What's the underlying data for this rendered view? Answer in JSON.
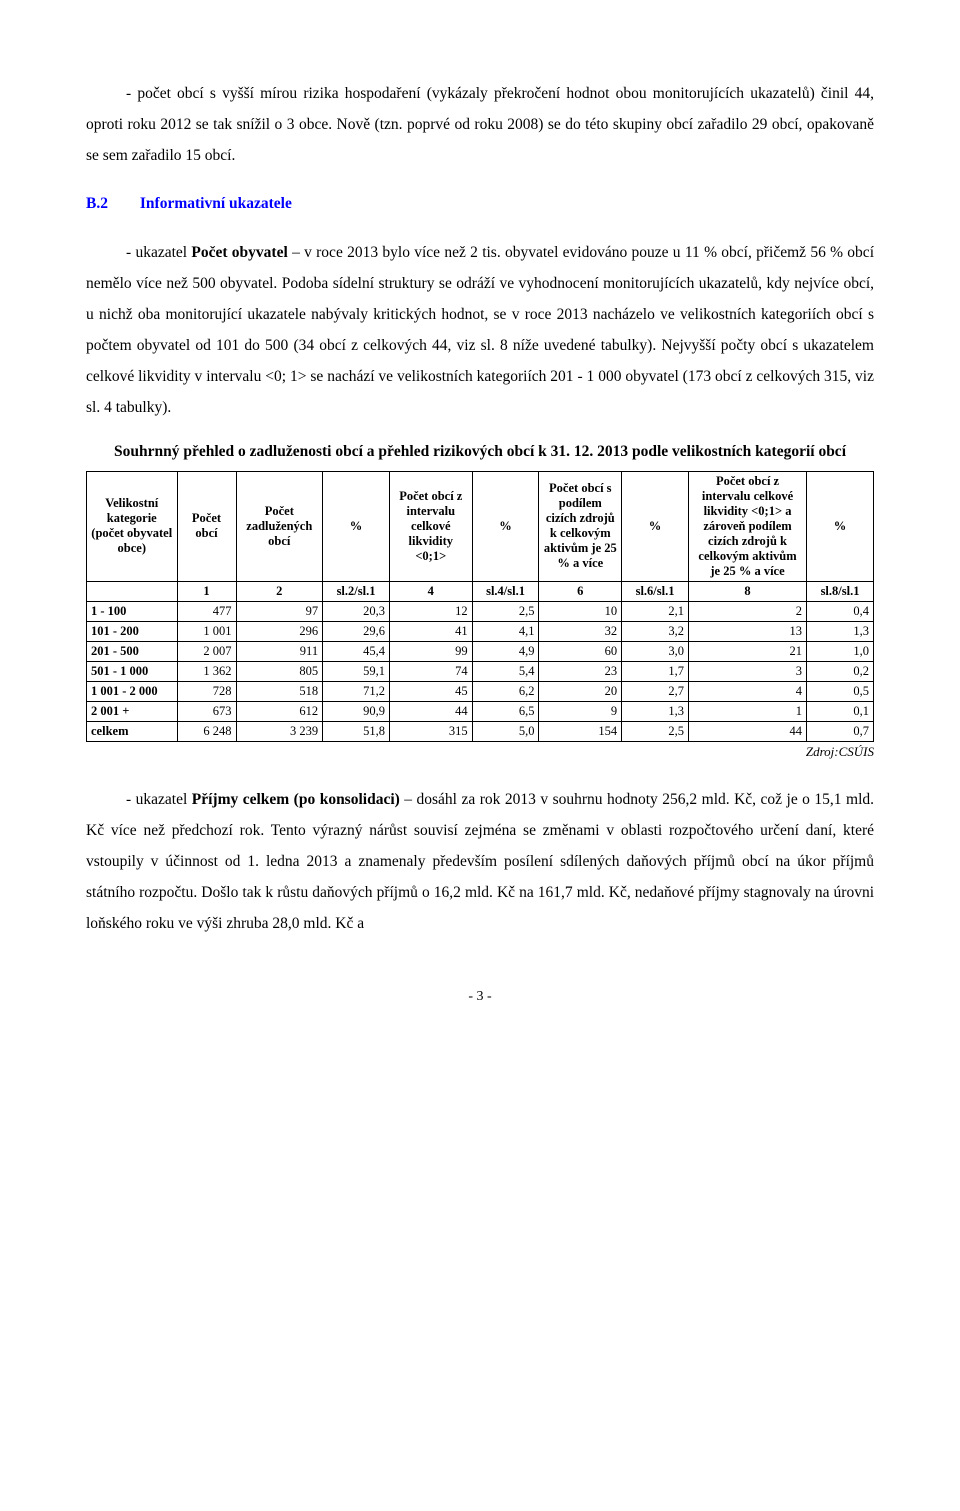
{
  "para1": {
    "indent_prefix": "- počet obcí s vyšší mírou rizika hospodaření ",
    "rest": "(vykázaly překročení hodnot obou monitorujících ukazatelů) činil 44, oproti roku 2012 se tak snížil o 3 obce. Nově (tzn. poprvé od roku 2008) se do této skupiny obcí zařadilo 29 obcí, opakovaně se sem zařadilo 15 obcí."
  },
  "section": {
    "num": "B.2",
    "title": "Informativní ukazatele"
  },
  "para2_prefix": "- ukazatel ",
  "para2_bold": "Počet obyvatel",
  "para2_rest": " – v roce 2013 bylo více než 2 tis. obyvatel evidováno pouze u 11 % obcí, přičemž 56 % obcí nemělo více než 500 obyvatel. Podoba sídelní struktury se odráží ve vyhodnocení monitorujících ukazatelů, kdy nejvíce obcí, u nichž oba monitorující ukazatele nabývaly kritických hodnot, se v roce 2013 nacházelo ve velikostních kategoriích obcí s počtem obyvatel od 101 do 500 (34 obcí z celkových 44, viz sl. 8 níže uvedené tabulky). Nejvyšší počty obcí s ukazatelem celkové likvidity v intervalu <0; 1> se nachází ve velikostních kategoriích 201 - 1 000 obyvatel (173 obcí z celkových 315, viz sl. 4 tabulky).",
  "table_title": "Souhrnný přehled o zadluženosti obcí a přehled rizikových obcí k 31. 12. 2013 podle velikostních kategorií obcí",
  "table": {
    "columns": [
      {
        "key": "cat",
        "label": "Velikostní kategorie (počet obyvatel obce)",
        "width": "11.5%",
        "sub": ""
      },
      {
        "key": "c1",
        "label": "Počet obcí",
        "width": "7.5%",
        "sub": "1"
      },
      {
        "key": "c2",
        "label": "Počet zadlužených obcí",
        "width": "11%",
        "sub": "2"
      },
      {
        "key": "c3",
        "label": "%",
        "width": "8.5%",
        "sub": "sl.2/sl.1"
      },
      {
        "key": "c4",
        "label": "Počet obcí z intervalu celkové likvidity <0;1>",
        "width": "10.5%",
        "sub": "4"
      },
      {
        "key": "c5",
        "label": "%",
        "width": "8.5%",
        "sub": "sl.4/sl.1"
      },
      {
        "key": "c6",
        "label": "Počet obcí s podílem cizích zdrojů k celkovým aktivům je 25 % a více",
        "width": "10.5%",
        "sub": "6"
      },
      {
        "key": "c7",
        "label": "%",
        "width": "8.5%",
        "sub": "sl.6/sl.1"
      },
      {
        "key": "c8",
        "label": "Počet obcí z intervalu celkové likvidity <0;1> a zároveň podílem cizích zdrojů k celkovým aktivům je 25 % a více",
        "width": "15%",
        "sub": "8"
      },
      {
        "key": "c9",
        "label": "%",
        "width": "8.5%",
        "sub": "sl.8/sl.1"
      }
    ],
    "rows": [
      {
        "cat": "1 - 100",
        "c1": "477",
        "c2": "97",
        "c3": "20,3",
        "c4": "12",
        "c5": "2,5",
        "c6": "10",
        "c7": "2,1",
        "c8": "2",
        "c9": "0,4"
      },
      {
        "cat": "101 - 200",
        "c1": "1 001",
        "c2": "296",
        "c3": "29,6",
        "c4": "41",
        "c5": "4,1",
        "c6": "32",
        "c7": "3,2",
        "c8": "13",
        "c9": "1,3"
      },
      {
        "cat": "201 - 500",
        "c1": "2 007",
        "c2": "911",
        "c3": "45,4",
        "c4": "99",
        "c5": "4,9",
        "c6": "60",
        "c7": "3,0",
        "c8": "21",
        "c9": "1,0"
      },
      {
        "cat": "501 - 1 000",
        "c1": "1 362",
        "c2": "805",
        "c3": "59,1",
        "c4": "74",
        "c5": "5,4",
        "c6": "23",
        "c7": "1,7",
        "c8": "3",
        "c9": "0,2"
      },
      {
        "cat": "1 001 - 2 000",
        "c1": "728",
        "c2": "518",
        "c3": "71,2",
        "c4": "45",
        "c5": "6,2",
        "c6": "20",
        "c7": "2,7",
        "c8": "4",
        "c9": "0,5"
      },
      {
        "cat": "2 001 +",
        "c1": "673",
        "c2": "612",
        "c3": "90,9",
        "c4": "44",
        "c5": "6,5",
        "c6": "9",
        "c7": "1,3",
        "c8": "1",
        "c9": "0,1"
      },
      {
        "cat": "celkem",
        "c1": "6 248",
        "c2": "3 239",
        "c3": "51,8",
        "c4": "315",
        "c5": "5,0",
        "c6": "154",
        "c7": "2,5",
        "c8": "44",
        "c9": "0,7"
      }
    ]
  },
  "source": "Zdroj:CSÚIS",
  "para3_prefix": "- ukazatel ",
  "para3_bold": "Příjmy celkem (po konsolidaci)",
  "para3_rest": " – dosáhl za rok 2013 v souhrnu hodnoty 256,2 mld. Kč, což je o 15,1 mld. Kč více než předchozí rok. Tento výrazný nárůst souvisí zejména se změnami v oblasti rozpočtového určení daní, které vstoupily v účinnost od 1. ledna 2013 a znamenaly především posílení sdílených daňových příjmů obcí na úkor příjmů státního rozpočtu.  Došlo tak k růstu daňových příjmů o 16,2 mld. Kč na 161,7 mld. Kč, nedaňové příjmy stagnovaly na úrovni loňského roku ve výši zhruba 28,0 mld. Kč a",
  "page_number": "- 3 -"
}
